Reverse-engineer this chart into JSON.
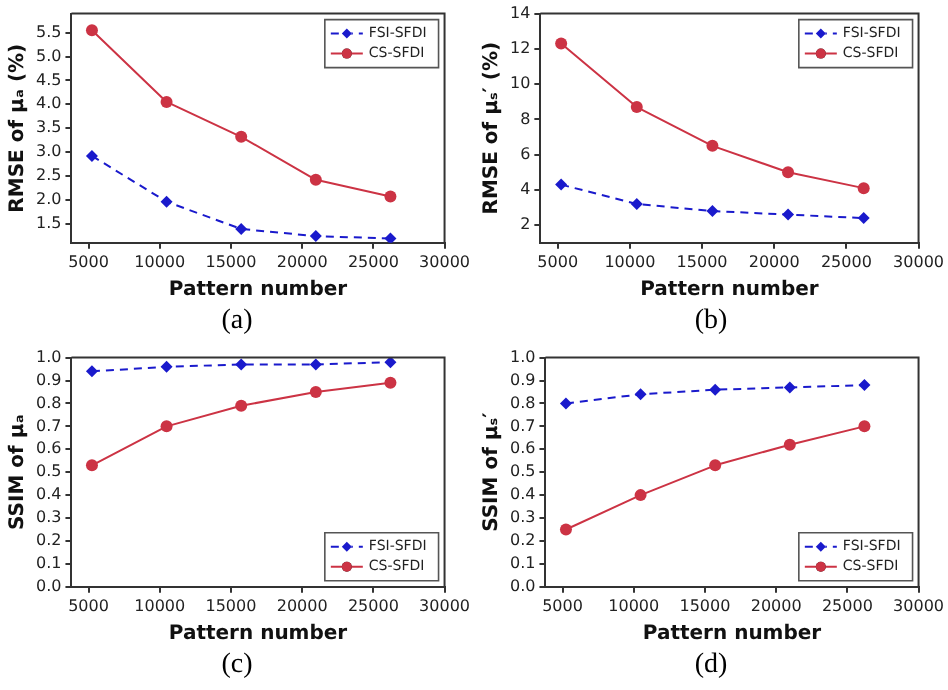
{
  "chart_data": [
    {
      "type": "line",
      "xlabel": "Pattern number",
      "ylabel": "RMSE of μₐ (%)",
      "annotations": [
        "(a)"
      ],
      "x": [
        5240,
        10480,
        15720,
        20960,
        26200
      ],
      "xlim": [
        3800,
        30000
      ],
      "xticks": [
        5000,
        10000,
        15000,
        20000,
        25000,
        30000
      ],
      "ylim": [
        1.1,
        5.9
      ],
      "yticks": [
        {
          "value": 1.5,
          "label": "1.5"
        },
        {
          "value": 2,
          "label": "2.0"
        },
        {
          "value": 2.5,
          "label": "2.5"
        },
        {
          "value": 3,
          "label": "3.0"
        },
        {
          "value": 3.5,
          "label": "3.5"
        },
        {
          "value": 4,
          "label": "4.0"
        },
        {
          "value": 4.5,
          "label": "4.5"
        },
        {
          "value": 5,
          "label": "5.0"
        },
        {
          "value": 5.5,
          "label": "5.5"
        }
      ],
      "legend": "top right",
      "grid": false,
      "series": [
        {
          "name": "FSI-SFDI",
          "color": "#1a1acc",
          "marker": "diamond",
          "line_style": "dashed",
          "values": [
            2.92,
            1.96,
            1.39,
            1.24,
            1.19
          ]
        },
        {
          "name": "CS-SFDI",
          "color": "#cc3344",
          "marker": "circle",
          "line_style": "solid",
          "values": [
            5.55,
            4.05,
            3.32,
            2.42,
            2.07
          ]
        }
      ]
    },
    {
      "type": "line",
      "xlabel": "Pattern number",
      "ylabel": "RMSE of μₛ′ (%)",
      "annotations": [
        "(b)"
      ],
      "x": [
        5240,
        10480,
        15720,
        20960,
        26200
      ],
      "xlim": [
        3800,
        30000
      ],
      "xticks": [
        5000,
        10000,
        15000,
        20000,
        25000,
        30000
      ],
      "ylim": [
        1,
        14
      ],
      "yticks": [
        2,
        4,
        6,
        8,
        10,
        12,
        14
      ],
      "legend": "top right",
      "grid": false,
      "series": [
        {
          "name": "FSI-SFDI",
          "color": "#1a1acc",
          "marker": "diamond",
          "line_style": "dashed",
          "values": [
            4.3,
            3.2,
            2.8,
            2.6,
            2.4
          ]
        },
        {
          "name": "CS-SFDI",
          "color": "#cc3344",
          "marker": "circle",
          "line_style": "solid",
          "values": [
            12.3,
            8.7,
            6.5,
            5.0,
            4.1
          ]
        }
      ]
    },
    {
      "type": "line",
      "xlabel": "Pattern number",
      "ylabel": "SSIM of μₐ",
      "annotations": [
        "(c)"
      ],
      "x": [
        5240,
        10480,
        15720,
        20960,
        26200
      ],
      "xlim": [
        3800,
        30000
      ],
      "xticks": [
        5000,
        10000,
        15000,
        20000,
        25000,
        30000
      ],
      "ylim": [
        0,
        1
      ],
      "yticks": [
        {
          "value": 0,
          "label": "0.0"
        },
        {
          "value": 0.1,
          "label": "0.1"
        },
        {
          "value": 0.2,
          "label": "0.2"
        },
        {
          "value": 0.3,
          "label": "0.3"
        },
        {
          "value": 0.4,
          "label": "0.4"
        },
        {
          "value": 0.5,
          "label": "0.5"
        },
        {
          "value": 0.6,
          "label": "0.6"
        },
        {
          "value": 0.7,
          "label": "0.7"
        },
        {
          "value": 0.8,
          "label": "0.8"
        },
        {
          "value": 0.9,
          "label": "0.9"
        },
        {
          "value": 1,
          "label": "1.0"
        }
      ],
      "legend": "bottom right",
      "grid": false,
      "series": [
        {
          "name": "FSI-SFDI",
          "color": "#1a1acc",
          "marker": "diamond",
          "line_style": "dashed",
          "values": [
            0.94,
            0.96,
            0.97,
            0.97,
            0.98
          ]
        },
        {
          "name": "CS-SFDI",
          "color": "#cc3344",
          "marker": "circle",
          "line_style": "solid",
          "values": [
            0.53,
            0.7,
            0.79,
            0.85,
            0.89
          ]
        }
      ]
    },
    {
      "type": "line",
      "xlabel": "Pattern number",
      "ylabel": "SSIM of μₛ′",
      "annotations": [
        "(d)"
      ],
      "x": [
        5240,
        10480,
        15720,
        20960,
        26200
      ],
      "xlim": [
        3800,
        30000
      ],
      "xticks": [
        5000,
        10000,
        15000,
        20000,
        25000,
        30000
      ],
      "ylim": [
        0,
        1
      ],
      "yticks": [
        {
          "value": 0,
          "label": "0.0"
        },
        {
          "value": 0.1,
          "label": "0.1"
        },
        {
          "value": 0.2,
          "label": "0.2"
        },
        {
          "value": 0.3,
          "label": "0.3"
        },
        {
          "value": 0.4,
          "label": "0.4"
        },
        {
          "value": 0.5,
          "label": "0.5"
        },
        {
          "value": 0.6,
          "label": "0.6"
        },
        {
          "value": 0.7,
          "label": "0.7"
        },
        {
          "value": 0.8,
          "label": "0.8"
        },
        {
          "value": 0.9,
          "label": "0.9"
        },
        {
          "value": 1,
          "label": "1.0"
        }
      ],
      "legend": "bottom right",
      "grid": false,
      "series": [
        {
          "name": "FSI-SFDI",
          "color": "#1a1acc",
          "marker": "diamond",
          "line_style": "dashed",
          "values": [
            0.8,
            0.84,
            0.86,
            0.87,
            0.88
          ]
        },
        {
          "name": "CS-SFDI",
          "color": "#cc3344",
          "marker": "circle",
          "line_style": "solid",
          "values": [
            0.25,
            0.4,
            0.53,
            0.62,
            0.7
          ]
        }
      ]
    }
  ]
}
